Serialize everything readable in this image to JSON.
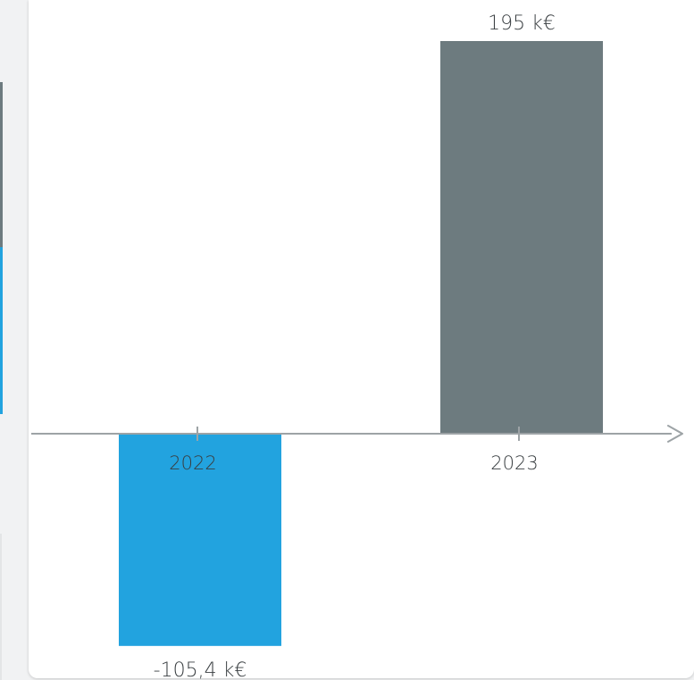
{
  "chart_data": {
    "type": "bar",
    "title": "",
    "xlabel": "",
    "ylabel": "",
    "categories": [
      "2022",
      "2023"
    ],
    "values": [
      -105.4,
      195
    ],
    "value_labels": [
      "-105,4 k€",
      "195 k€"
    ],
    "ylim": [
      -110,
      200
    ],
    "grid": false,
    "legend": "none",
    "colors": {
      "negative": "#22a3df",
      "positive": "#6d7b7f",
      "axis": "#9da3a6"
    }
  }
}
